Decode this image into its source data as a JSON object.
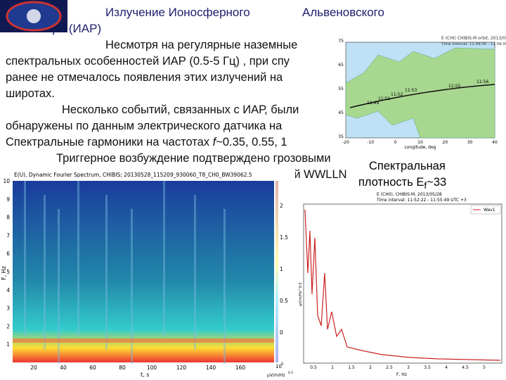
{
  "title": {
    "lines": [
      "Излучение  Ионосферного",
      "Альвеновского",
      "Резонатора (ИАР)"
    ]
  },
  "body": {
    "lines": [
      "Несмотря на регулярные наземные",
      "спектральных особенностей ИАР (0.5-5 Гц) , при спу",
      "ранее не отмечалось появления этих излучений на",
      "широтах.",
      "Несколько событий, связанных с ИАР, были",
      "обнаружены по данным электрического датчика на"
    ],
    "harmonics": {
      "prefix": "Спектральные гармоники на частотах ",
      "variable": "f",
      "suffix": "~0.35, 0.55, 1"
    },
    "trigger": "Триггерное возбуждение подтверждено грозовыми",
    "wwlln": "ний WWLLN"
  },
  "spectrum_label": {
    "line1": "Спектральная",
    "prefix": "плотность  E",
    "subscript": "f",
    "suffix": "~33"
  },
  "map": {
    "title": "E (CHI) CHIBIS-M orbit, 2013/05/28",
    "interval": "Time interval: 11:49:00 - 11:56:00 UTC +3",
    "times": [
      "11:49",
      "11:51",
      "11:52",
      "11:53",
      "11:55",
      "11:56"
    ],
    "xlabel": "Longitude, deg",
    "xticks": [
      -20,
      -10,
      0,
      10,
      20,
      30,
      40
    ],
    "yticks": [
      35,
      45,
      55,
      65,
      75
    ]
  },
  "spectrogram": {
    "title": "E(U), Dynamic Fourier Spectrum, CHIBIS; 20130528_115209_930060_T8_CH0_BW39062.5",
    "ylabel": "F, Hz",
    "xlabel": "t, s",
    "yticks": [
      1,
      2,
      3,
      4,
      5,
      6,
      7,
      8,
      9,
      10
    ],
    "xticks": [
      20,
      40,
      60,
      80,
      100,
      120,
      140,
      160
    ],
    "cticks": [
      0,
      0.5,
      1,
      1.5,
      2
    ],
    "cunit_base": "10",
    "cunit_exp": "0",
    "cunit": "μV/m/Hz",
    "cunit_pow": "0.5"
  },
  "psd_plot": {
    "title": "E (CH0), CHIBIS-M, 2013/05/28",
    "interval": "Time interval: 11:52:22 - 11:55:49 UTC +3",
    "legend": "Wav1",
    "xlabel": "F, Hz",
    "ylabel": "μV/m/Hz^0.5",
    "xticks": [
      0.5,
      1,
      1.5,
      2,
      2.5,
      3,
      3.5,
      4,
      4.5,
      5
    ]
  }
}
